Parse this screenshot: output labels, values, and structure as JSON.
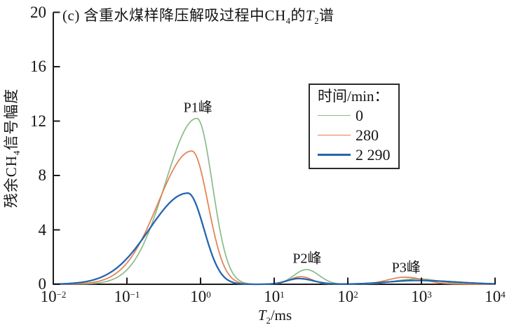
{
  "figure": {
    "title": {
      "pre": "(c) 含重水煤样降压解吸过程中CH",
      "sub1": "4",
      "mid": "的",
      "ital": "T",
      "sub2": "2",
      "post": "谱"
    },
    "y_axis": {
      "label_pre": "残余CH",
      "label_sub": "4",
      "label_post": "信号幅度"
    },
    "x_axis": {
      "label_ital": "T",
      "label_sub": "2",
      "label_post": "/ms"
    }
  },
  "legend": {
    "title": "时间/min：",
    "items": [
      {
        "label": "0"
      },
      {
        "label": "280"
      },
      {
        "label": "2 290"
      }
    ]
  },
  "chart_data": {
    "type": "line",
    "title": "(c) 含重水煤样降压解吸过程中CH4的T2谱",
    "xlabel": "T2/ms",
    "ylabel": "残余CH4信号幅度",
    "x_scale": "log",
    "xlim_ms": [
      0.01,
      10000
    ],
    "ylim": [
      0,
      20
    ],
    "grid": false,
    "y_ticks": [
      0,
      4,
      8,
      12,
      16,
      20
    ],
    "x_tick_base": "10",
    "x_ticks": [
      {
        "exp_display": "−2",
        "value_ms": 0.01
      },
      {
        "exp_display": "−1",
        "value_ms": 0.1
      },
      {
        "exp_display": "0",
        "value_ms": 1
      },
      {
        "exp_display": "1",
        "value_ms": 10
      },
      {
        "exp_display": "2",
        "value_ms": 100
      },
      {
        "exp_display": "3",
        "value_ms": 1000
      },
      {
        "exp_display": "4",
        "value_ms": 10000
      }
    ],
    "legend_title": "时间/min：",
    "legend_position": "upper right",
    "series": [
      {
        "name": "0",
        "time_min": 0,
        "color": "#8abb8a",
        "stroke_width": 1.7,
        "peaks": [
          {
            "peak": "P1",
            "center_ms": 0.89,
            "amplitude": 12.2,
            "sigma_left_dec": 0.43,
            "sigma_right_dec": 0.21
          },
          {
            "peak": "P2",
            "center_ms": 27.5,
            "amplitude": 1.08,
            "sigma_left_dec": 0.17,
            "sigma_right_dec": 0.17
          },
          {
            "peak": "P3",
            "center_ms": 890,
            "amplitude": 0.4,
            "sigma_left_dec": 0.3,
            "sigma_right_dec": 0.28
          }
        ]
      },
      {
        "name": "280",
        "time_min": 280,
        "color": "#e67d4e",
        "stroke_width": 1.7,
        "peaks": [
          {
            "peak": "P1",
            "center_ms": 0.76,
            "amplitude": 9.8,
            "sigma_left_dec": 0.46,
            "sigma_right_dec": 0.22
          },
          {
            "peak": "P2",
            "center_ms": 23,
            "amplitude": 0.56,
            "sigma_left_dec": 0.15,
            "sigma_right_dec": 0.15
          },
          {
            "peak": "P3",
            "center_ms": 600,
            "amplitude": 0.52,
            "sigma_left_dec": 0.24,
            "sigma_right_dec": 0.26
          }
        ]
      },
      {
        "name": "2 290",
        "time_min": 2290,
        "color": "#2565ae",
        "stroke_width": 2.3,
        "peaks": [
          {
            "peak": "P1",
            "center_ms": 0.67,
            "amplitude": 6.7,
            "sigma_left_dec": 0.52,
            "sigma_right_dec": 0.22
          },
          {
            "peak": "P2",
            "center_ms": 21.5,
            "amplitude": 0.42,
            "sigma_left_dec": 0.16,
            "sigma_right_dec": 0.2
          },
          {
            "peak": "P3",
            "center_ms": 890,
            "amplitude": 0.28,
            "sigma_left_dec": 0.4,
            "sigma_right_dec": 0.5
          }
        ]
      }
    ],
    "annotations": [
      {
        "text": "P1峰",
        "x_ms": 0.92,
        "y": 13.1
      },
      {
        "text": "P2峰",
        "x_ms": 28,
        "y": 2.0
      },
      {
        "text": "P3峰",
        "x_ms": 620,
        "y": 1.35
      }
    ]
  }
}
